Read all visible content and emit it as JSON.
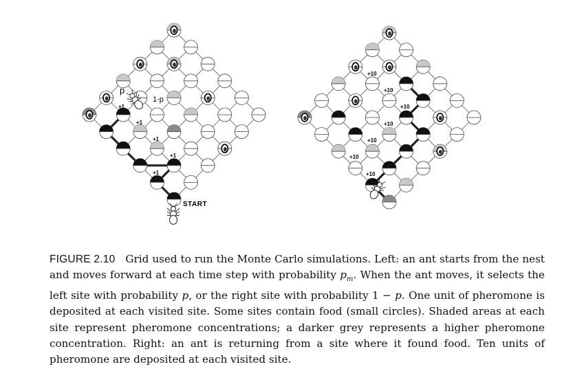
{
  "figure": {
    "left_panel": {
      "start_label": "START",
      "left_prob_label": "p",
      "right_prob_label": "1-p",
      "step_labels": [
        "+1",
        "+1",
        "+1",
        "+1",
        "+1",
        "+1"
      ]
    },
    "right_panel": {
      "step_labels": [
        "+10",
        "+10",
        "+10",
        "+10",
        "+10",
        "+10",
        "+10"
      ]
    }
  },
  "caption": {
    "label": "FIGURE 2.10",
    "text_1": "Grid used to run the Monte Carlo simulations. Left: an ant starts from the nest and moves forward at each time step with probability ",
    "pm": "p",
    "pm_sub": "m",
    "text_2": ". When the ant moves, it selects the left site with probability ",
    "p": "p",
    "text_3": ", or the right site with probability 1 − ",
    "p2": "p",
    "text_4": ". One unit of pheromone is deposited at each visited site. Some sites contain food (small circles). Shaded areas at each site represent pheromone concentrations; a darker grey represents a higher pheromone concentration. Right: an ant is returning from a site where it found food. Ten units of pheromone are deposited at each visited site."
  },
  "colors": {
    "pheromone_dark": "#111111",
    "pheromone_mid": "#8a8a8a",
    "pheromone_light": "#c8c8c8",
    "line": "#222222"
  }
}
